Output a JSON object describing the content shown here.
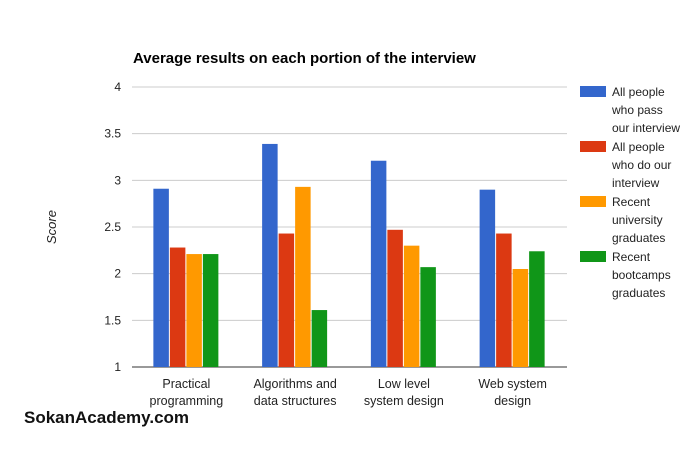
{
  "chart_data": {
    "type": "bar",
    "title": "Average results on each portion of the interview",
    "ylabel": "Score",
    "xlabel": "",
    "ylim": [
      1,
      4
    ],
    "yticks": [
      "1",
      "1.5",
      "2",
      "2.5",
      "3",
      "3.5",
      "4"
    ],
    "grid": true,
    "legend_position": "right",
    "categories": [
      [
        "Practical",
        "programming"
      ],
      [
        "Algorithms and",
        "data structures"
      ],
      [
        "Low level",
        "system design"
      ],
      [
        "Web system",
        "design"
      ]
    ],
    "series": [
      {
        "name": [
          "All people",
          "who pass",
          "our interview"
        ],
        "color": "#3366cc",
        "values": [
          2.91,
          3.39,
          3.21,
          2.9
        ]
      },
      {
        "name": [
          "All people",
          "who do our",
          "interview"
        ],
        "color": "#dc3912",
        "values": [
          2.28,
          2.43,
          2.47,
          2.43
        ]
      },
      {
        "name": [
          "Recent",
          "university",
          "graduates"
        ],
        "color": "#ff9900",
        "values": [
          2.21,
          2.93,
          2.3,
          2.05
        ]
      },
      {
        "name": [
          "Recent",
          "bootcamps",
          "graduates"
        ],
        "color": "#109618",
        "values": [
          2.21,
          1.61,
          2.07,
          2.24
        ]
      }
    ]
  },
  "watermark": "SokanAcademy.com"
}
